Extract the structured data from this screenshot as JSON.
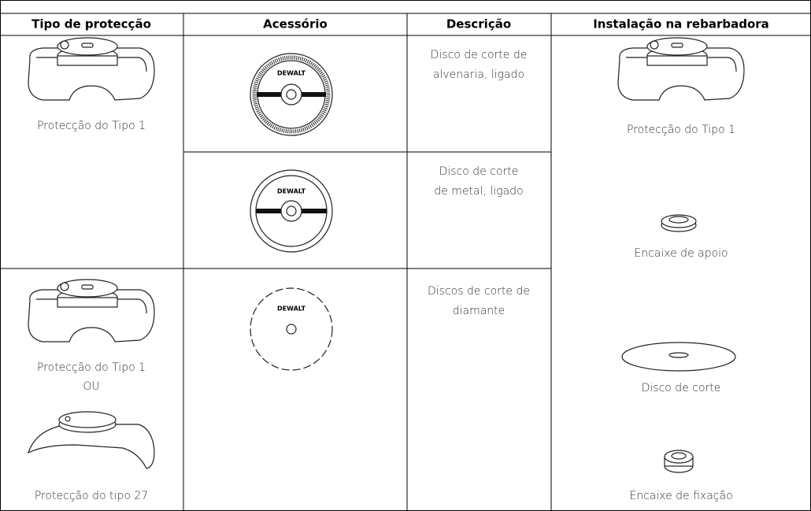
{
  "table": {
    "headers": [
      "Tipo de protecção",
      "Acessório",
      "Descrição",
      "Instalação na rebarbadora"
    ],
    "guard_cells": [
      {
        "lines": [
          "Protecção do Tipo 1"
        ]
      },
      {
        "lines": [
          "Protecção do Tipo 1",
          "OU",
          "Protecção do tipo 27"
        ]
      }
    ],
    "accessory_rows": [
      {
        "brand": "DEWALT",
        "description": [
          "Disco de corte de",
          "alvenaria, ligado"
        ]
      },
      {
        "brand": "DEWALT",
        "description": [
          "Disco de corte",
          "de metal, ligado"
        ]
      },
      {
        "brand": "DEWALT",
        "description": [
          "Discos de corte de",
          "diamante"
        ]
      }
    ],
    "installation": [
      "Protecção do Tipo 1",
      "Encaixe de apoio",
      "Disco de corte",
      "Encaixe de fixação"
    ]
  }
}
